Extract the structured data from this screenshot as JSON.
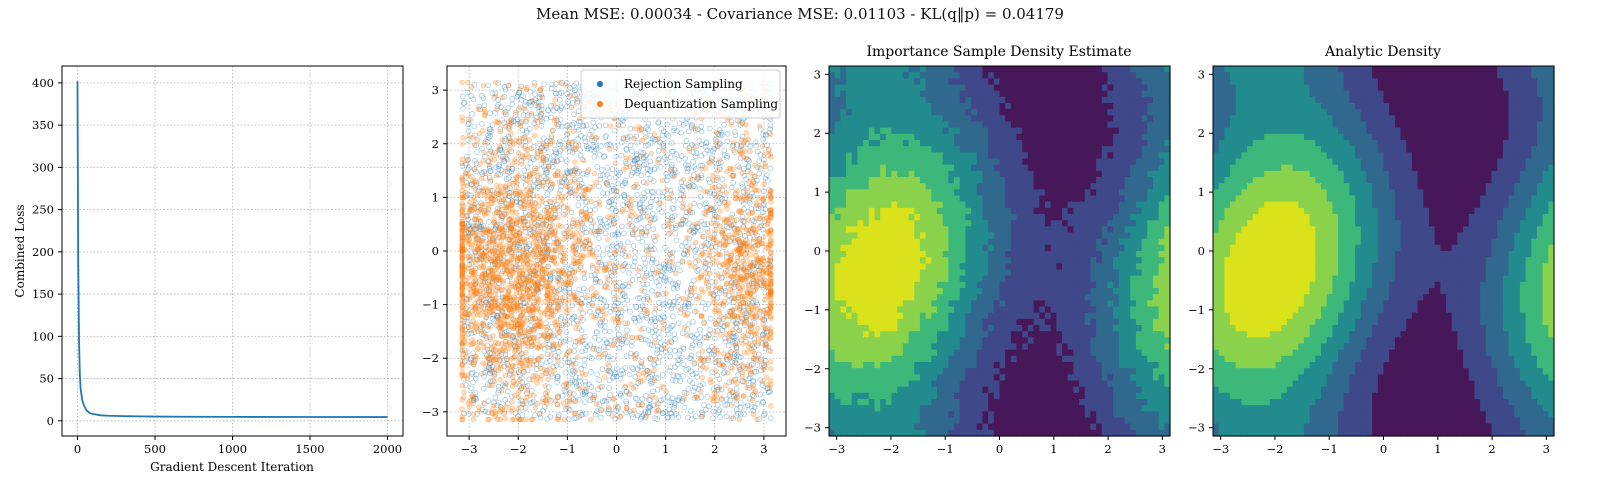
{
  "figure": {
    "suptitle": "Mean MSE: 0.00034 - Covariance MSE: 0.01103 - KL(q‖p) = 0.04179"
  },
  "colors": {
    "series_blue": "#1f77b4",
    "series_orange": "#ff7f0e",
    "viridis_levels": [
      "#46185a",
      "#3f4889",
      "#30688e",
      "#228b8d",
      "#3db87a",
      "#8bd24c",
      "#d9e21a"
    ]
  },
  "chart_data": [
    {
      "type": "line",
      "title": "",
      "xlabel": "Gradient Descent Iteration",
      "ylabel": "Combined Loss",
      "xlim": [
        -100,
        2100
      ],
      "ylim": [
        -18,
        420
      ],
      "xticks": [
        0,
        500,
        1000,
        1500,
        2000
      ],
      "yticks": [
        0,
        50,
        100,
        150,
        200,
        250,
        300,
        350,
        400
      ],
      "grid": true,
      "series": [
        {
          "x": [
            0,
            2,
            5,
            10,
            15,
            20,
            30,
            40,
            50,
            60,
            80,
            100,
            150,
            200,
            300,
            400,
            500,
            700,
            1000,
            1500,
            2000
          ],
          "y": [
            402,
            300,
            180,
            95,
            55,
            38,
            25,
            19,
            15,
            12,
            9,
            8,
            6.5,
            6,
            5.5,
            5.2,
            5,
            4.8,
            4.6,
            4.5,
            4.4
          ]
        }
      ]
    },
    {
      "type": "scatter",
      "title": "",
      "xlim": [
        -3.45,
        3.45
      ],
      "ylim": [
        -3.45,
        3.45
      ],
      "xticks": [
        -3,
        -2,
        -1,
        0,
        1,
        2,
        3
      ],
      "yticks": [
        -3,
        -2,
        -1,
        0,
        1,
        2,
        3
      ],
      "grid": true,
      "legend": "top-right",
      "series": [
        {
          "name": "Rejection Sampling",
          "color": "#1f77b4",
          "distribution": "uniform on [-π, π]² (~5000 points)"
        },
        {
          "name": "Dequantization Sampling",
          "color": "#ff7f0e",
          "distribution": "concentrated near x≈-2, widely spread (~5000 points)"
        }
      ]
    },
    {
      "type": "heatmap",
      "title": "Importance Sample Density Estimate",
      "xlim": [
        -3.1416,
        3.1416
      ],
      "ylim": [
        -3.1416,
        3.1416
      ],
      "xticks": [
        -3,
        -2,
        -1,
        0,
        1,
        2,
        3
      ],
      "yticks": [
        -3,
        -2,
        -1,
        0,
        1,
        2,
        3
      ],
      "levels": 7,
      "colormap": "viridis",
      "peak": [
        -2.2,
        -0.3
      ]
    },
    {
      "type": "heatmap",
      "title": "Analytic Density",
      "xlim": [
        -3.1416,
        3.1416
      ],
      "ylim": [
        -3.1416,
        3.1416
      ],
      "xticks": [
        -3,
        -2,
        -1,
        0,
        1,
        2,
        3
      ],
      "yticks": [
        -3,
        -2,
        -1,
        0,
        1,
        2,
        3
      ],
      "levels": 7,
      "colormap": "viridis",
      "peak": [
        -2.1,
        -0.3
      ]
    }
  ]
}
